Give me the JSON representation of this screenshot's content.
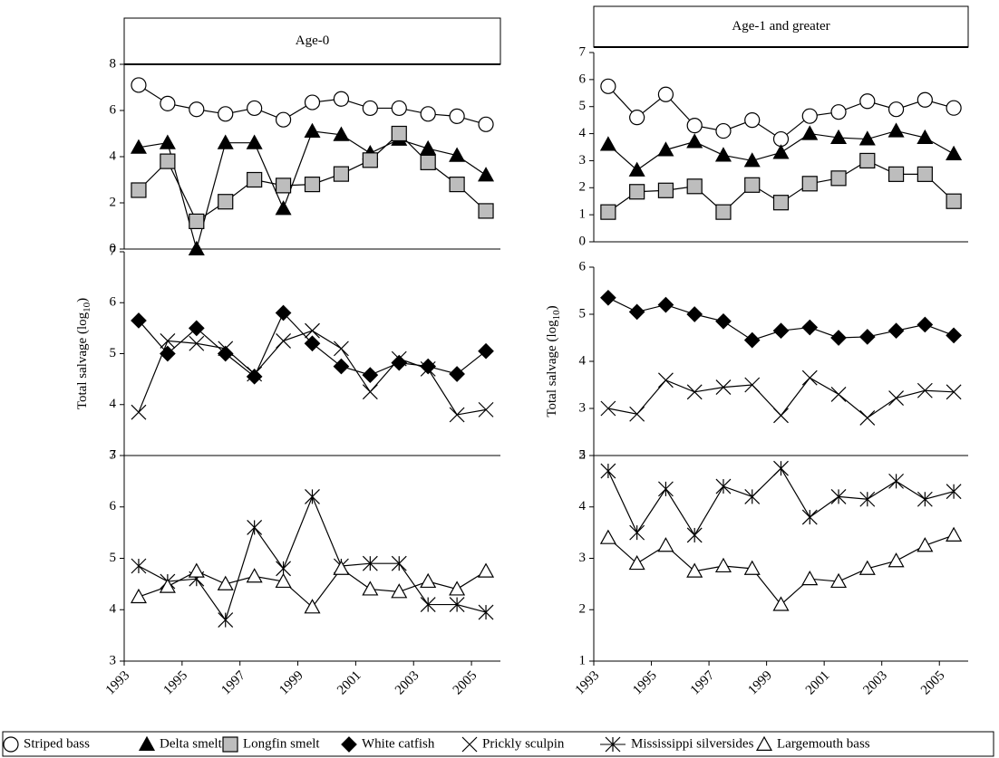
{
  "chart_data": [
    {
      "type": "line",
      "title": "Age-0",
      "x": [
        1993.5,
        1994.5,
        1995.5,
        1996.5,
        1997.5,
        1998.5,
        1999.5,
        2000.5,
        2001.5,
        2002.5,
        2003.5,
        2004.5,
        2005.5
      ],
      "xlim": [
        1993,
        2006
      ],
      "ylim": [
        0,
        8
      ],
      "yticks": [
        0,
        2,
        4,
        6,
        8
      ],
      "series": [
        {
          "name": "Striped bass",
          "marker": "circle",
          "color": "#ffffff",
          "values": [
            7.1,
            6.3,
            6.05,
            5.85,
            6.1,
            5.6,
            6.35,
            6.5,
            6.1,
            6.1,
            5.85,
            5.75,
            5.4
          ]
        },
        {
          "name": "Delta smelt",
          "marker": "triangle",
          "color": "#000000",
          "values": [
            4.4,
            4.6,
            0,
            4.6,
            4.6,
            1.75,
            5.1,
            4.95,
            4.15,
            4.75,
            4.35,
            4.05,
            3.2
          ]
        },
        {
          "name": "Longfin smelt",
          "marker": "square",
          "color": "#bdbdbd",
          "values": [
            2.55,
            3.8,
            1.2,
            2.05,
            3.0,
            2.75,
            2.8,
            3.25,
            3.85,
            5.0,
            3.75,
            2.8,
            1.65
          ]
        }
      ]
    },
    {
      "type": "line",
      "y_label": [
        "Total salvage (log",
        "10",
        ")"
      ],
      "x": [
        1993.5,
        1994.5,
        1995.5,
        1996.5,
        1997.5,
        1998.5,
        1999.5,
        2000.5,
        2001.5,
        2002.5,
        2003.5,
        2004.5,
        2005.5
      ],
      "xlim": [
        1993,
        2006
      ],
      "ylim": [
        3,
        7
      ],
      "yticks": [
        3,
        4,
        5,
        6,
        7
      ],
      "series": [
        {
          "name": "White catfish",
          "marker": "diamond",
          "color": "#000000",
          "values": [
            5.65,
            5.0,
            5.5,
            5.0,
            4.55,
            5.8,
            5.2,
            4.75,
            4.58,
            4.82,
            4.75,
            4.6,
            5.05
          ]
        },
        {
          "name": "Prickly sculpin",
          "marker": "x",
          "color": "#000000",
          "values": [
            3.85,
            5.25,
            5.2,
            5.1,
            4.6,
            5.25,
            5.45,
            5.1,
            4.25,
            4.9,
            4.7,
            3.8,
            3.9
          ]
        }
      ]
    },
    {
      "type": "line",
      "x": [
        1993.5,
        1994.5,
        1995.5,
        1996.5,
        1997.5,
        1998.5,
        1999.5,
        2000.5,
        2001.5,
        2002.5,
        2003.5,
        2004.5,
        2005.5
      ],
      "xlim": [
        1993,
        2006
      ],
      "xticks": [
        1993,
        1995,
        1997,
        1999,
        2001,
        2003,
        2005
      ],
      "ylim": [
        3,
        7
      ],
      "yticks": [
        3,
        4,
        5,
        6,
        7
      ],
      "series": [
        {
          "name": "Mississippi silversides",
          "marker": "asterisk",
          "color": "#000000",
          "values": [
            4.85,
            4.55,
            4.6,
            3.8,
            5.6,
            4.8,
            6.2,
            4.85,
            4.9,
            4.9,
            4.1,
            4.1,
            3.95
          ]
        },
        {
          "name": "Largemouth bass",
          "marker": "triangle-open",
          "color": "#ffffff",
          "values": [
            4.25,
            4.45,
            4.75,
            4.5,
            4.65,
            4.55,
            4.05,
            4.8,
            4.4,
            4.35,
            4.55,
            4.4,
            4.75
          ]
        }
      ]
    },
    {
      "type": "line",
      "title": "Age-1 and greater",
      "x": [
        1993.5,
        1994.5,
        1995.5,
        1996.5,
        1997.5,
        1998.5,
        1999.5,
        2000.5,
        2001.5,
        2002.5,
        2003.5,
        2004.5,
        2005.5
      ],
      "xlim": [
        1993,
        2006
      ],
      "ylim": [
        0,
        7
      ],
      "yticks": [
        0,
        1,
        2,
        3,
        4,
        5,
        6,
        7
      ],
      "series": [
        {
          "name": "Striped bass",
          "marker": "circle",
          "color": "#ffffff",
          "values": [
            5.75,
            4.6,
            5.45,
            4.3,
            4.1,
            4.5,
            3.8,
            4.65,
            4.8,
            5.2,
            4.9,
            5.25,
            4.95
          ]
        },
        {
          "name": "Delta smelt",
          "marker": "triangle",
          "color": "#000000",
          "values": [
            3.6,
            2.65,
            3.4,
            3.7,
            3.2,
            3.0,
            3.3,
            4.0,
            3.85,
            3.8,
            4.1,
            3.85,
            3.25
          ]
        },
        {
          "name": "Longfin smelt",
          "marker": "square",
          "color": "#bdbdbd",
          "values": [
            1.1,
            1.85,
            1.9,
            2.05,
            1.1,
            2.1,
            1.45,
            2.15,
            2.35,
            3.0,
            2.5,
            2.5,
            1.5
          ]
        }
      ]
    },
    {
      "type": "line",
      "y_label": [
        "Total salvage (log",
        "10",
        ")"
      ],
      "x": [
        1993.5,
        1994.5,
        1995.5,
        1996.5,
        1997.5,
        1998.5,
        1999.5,
        2000.5,
        2001.5,
        2002.5,
        2003.5,
        2004.5,
        2005.5
      ],
      "xlim": [
        1993,
        2006
      ],
      "ylim": [
        2,
        6
      ],
      "yticks": [
        2,
        3,
        4,
        5,
        6
      ],
      "series": [
        {
          "name": "White catfish",
          "marker": "diamond",
          "color": "#000000",
          "values": [
            5.35,
            5.05,
            5.2,
            5.0,
            4.85,
            4.45,
            4.65,
            4.72,
            4.5,
            4.52,
            4.65,
            4.78,
            4.55
          ]
        },
        {
          "name": "Prickly sculpin",
          "marker": "x",
          "color": "#000000",
          "values": [
            3.0,
            2.88,
            3.6,
            3.35,
            3.45,
            3.5,
            2.85,
            3.65,
            3.3,
            2.8,
            3.22,
            3.38,
            3.35
          ]
        }
      ]
    },
    {
      "type": "line",
      "x": [
        1993.5,
        1994.5,
        1995.5,
        1996.5,
        1997.5,
        1998.5,
        1999.5,
        2000.5,
        2001.5,
        2002.5,
        2003.5,
        2004.5,
        2005.5
      ],
      "xlim": [
        1993,
        2006
      ],
      "xticks": [
        1993,
        1995,
        1997,
        1999,
        2001,
        2003,
        2005
      ],
      "ylim": [
        1,
        5
      ],
      "yticks": [
        1,
        2,
        3,
        4,
        5
      ],
      "series": [
        {
          "name": "Mississippi silversides",
          "marker": "asterisk",
          "color": "#000000",
          "values": [
            4.7,
            3.5,
            4.35,
            3.45,
            4.4,
            4.2,
            4.75,
            3.8,
            4.2,
            4.15,
            4.5,
            4.15,
            4.3
          ]
        },
        {
          "name": "Largemouth bass",
          "marker": "triangle-open",
          "color": "#ffffff",
          "values": [
            3.4,
            2.9,
            3.25,
            2.75,
            2.85,
            2.8,
            2.1,
            2.6,
            2.55,
            2.8,
            2.95,
            3.25,
            3.45
          ]
        }
      ]
    }
  ]
}
